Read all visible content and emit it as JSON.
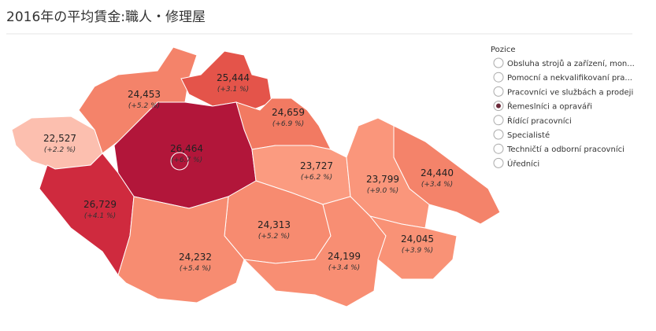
{
  "header": {
    "title": "2016年の平均賃金:職人・修理屋"
  },
  "legend": {
    "title": "Pozice",
    "selected": 3,
    "options": [
      "Obsluha strojů a zařízení, mon...",
      "Pomocní a nekvalifikovaní pra...",
      "Pracovníci ve službách a prodeji",
      "Řemeslníci a opraváři",
      "Řídící pracovníci",
      "Specialisté",
      "Techničtí a odborní pracovníci",
      "Úředníci"
    ]
  },
  "regions": [
    {
      "value": "24,453",
      "change": "(+5.2 %)",
      "color": "#f4836a"
    },
    {
      "value": "25,444",
      "change": "(+3.1 %)",
      "color": "#e4544a"
    },
    {
      "value": "22,527",
      "change": "(+2.2 %)",
      "color": "#fcbfaf"
    },
    {
      "value": "24,659",
      "change": "(+6.9 %)",
      "color": "#f27a62"
    },
    {
      "value": "26,464",
      "change": "(+6.7 %)",
      "color": "#b2163a"
    },
    {
      "value": "26,729",
      "change": "(+4.1 %)",
      "color": "#cf2a3e"
    },
    {
      "value": "23,727",
      "change": "(+6.2 %)",
      "color": "#fb9b80"
    },
    {
      "value": "23,799",
      "change": "(+9.0 %)",
      "color": "#fa967b"
    },
    {
      "value": "24,440",
      "change": "(+3.4 %)",
      "color": "#f4836a"
    },
    {
      "value": "24,313",
      "change": "(+5.2 %)",
      "color": "#f78b70"
    },
    {
      "value": "24,232",
      "change": "(+5.4 %)",
      "color": "#f78c71"
    },
    {
      "value": "24,199",
      "change": "(+3.4 %)",
      "color": "#f88e73"
    },
    {
      "value": "24,045",
      "change": "(+3.9 %)",
      "color": "#f99276"
    }
  ]
}
